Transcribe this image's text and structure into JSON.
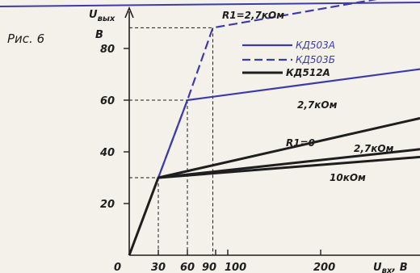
{
  "figure_label": "Рис. 6",
  "chart_data": {
    "type": "line",
    "title": "",
    "xlabel": "U",
    "xlabel_sub": "вх",
    "xlabel_unit": ", В",
    "ylabel": "U",
    "ylabel_sub": "вых",
    "ylabel_unit": "В",
    "origin_label": "0",
    "x_ticks": [
      30,
      60,
      90,
      100,
      200
    ],
    "y_ticks": [
      20,
      40,
      60,
      80
    ],
    "xlim": [
      0,
      290
    ],
    "ylim": [
      0,
      100
    ],
    "legend": [
      {
        "name": "КД503А",
        "color": "#3d3ba5",
        "style": "solid"
      },
      {
        "name": "КД503Б",
        "color": "#3d3ba5",
        "style": "dashed"
      },
      {
        "name": "КД512А",
        "color": "#1e1e1e",
        "style": "solid"
      }
    ],
    "series": [
      {
        "label": "R1=2,7кОм",
        "color": "#3d3ba5",
        "style": "dashed",
        "x": [
          0,
          60,
          87,
          290
        ],
        "y": [
          0,
          60,
          88,
          102
        ]
      },
      {
        "label": "2,7кОм",
        "color": "#3d3ba5",
        "style": "solid",
        "x": [
          0,
          60,
          290
        ],
        "y": [
          0,
          60,
          72
        ]
      },
      {
        "label": "R1=0",
        "color": "#1e1e1e",
        "style": "solid",
        "x": [
          0,
          30,
          290
        ],
        "y": [
          0,
          30,
          53
        ]
      },
      {
        "label": "2,7кОм",
        "color": "#1e1e1e",
        "style": "solid",
        "x": [
          30,
          290
        ],
        "y": [
          30,
          41
        ]
      },
      {
        "label": "10кОм",
        "color": "#1e1e1e",
        "style": "solid",
        "x": [
          30,
          290
        ],
        "y": [
          30,
          38
        ]
      }
    ],
    "guides": [
      {
        "x": 30,
        "y": 30
      },
      {
        "x": 60,
        "y": 60
      },
      {
        "x": 87,
        "y": 88
      }
    ]
  }
}
